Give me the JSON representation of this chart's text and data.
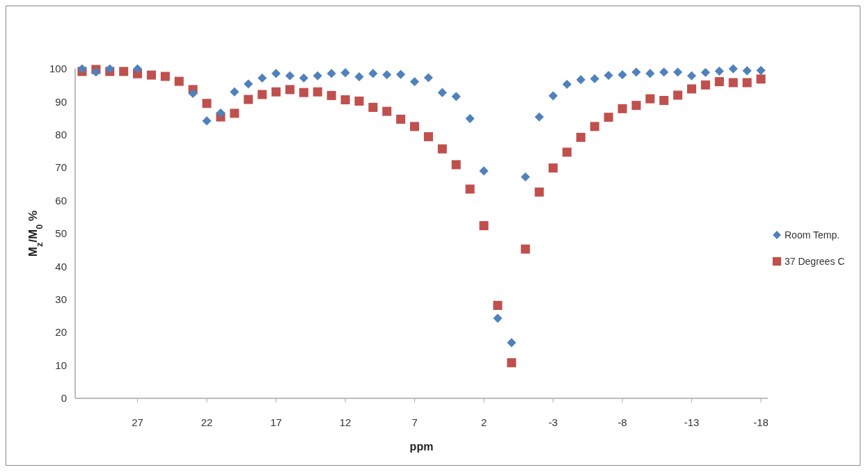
{
  "chart_data": {
    "type": "scatter",
    "xlabel": "ppm",
    "ylabel": "M$_{z}$/M$_{0}$ %",
    "x": [
      31,
      30,
      29,
      28,
      27,
      26,
      25,
      24,
      23,
      22,
      21,
      20,
      19,
      18,
      17,
      16,
      15,
      14,
      13,
      12,
      11,
      10,
      9,
      8,
      7,
      6,
      5,
      4,
      3,
      2,
      1,
      0,
      -1,
      -2,
      -3,
      -4,
      -5,
      -6,
      -7,
      -8,
      -9,
      -10,
      -11,
      -12,
      -13,
      -14,
      -15,
      -16,
      -17,
      -18
    ],
    "series": [
      {
        "name": "Room Temp.",
        "color": "#4f81bd",
        "marker": "diamond",
        "values": [
          100,
          99,
          100,
          null,
          100,
          null,
          null,
          null,
          92.5,
          84.2,
          86.6,
          93,
          95.4,
          97.2,
          98.6,
          97.9,
          97.2,
          97.9,
          98.6,
          98.8,
          97.6,
          98.6,
          98.2,
          98.3,
          96.1,
          97.3,
          92.8,
          91.6,
          84.9,
          69,
          24.3,
          16.9,
          67.2,
          85.4,
          91.8,
          95.3,
          96.7,
          97,
          98,
          98.2,
          99,
          98.6,
          99,
          99,
          97.9,
          98.9,
          99.3,
          100,
          99.4,
          99.5
        ]
      },
      {
        "name": "37 Degrees C",
        "color": "#c0504d",
        "marker": "square",
        "values": [
          99.2,
          99.8,
          99.2,
          99.2,
          98.5,
          98.1,
          97.7,
          96.2,
          93.7,
          89.5,
          85.4,
          86.5,
          90.7,
          92.2,
          93,
          93.7,
          92.8,
          93,
          91.9,
          90.6,
          90.2,
          88.3,
          87.1,
          84.7,
          82.5,
          79.4,
          75.7,
          70.9,
          63.5,
          52.4,
          28.2,
          10.8,
          45.3,
          62.6,
          69.9,
          74.7,
          79.2,
          82.5,
          85.3,
          87.9,
          88.9,
          90.9,
          90.4,
          92,
          93.9,
          95.1,
          96.1,
          95.8,
          95.8,
          96.9
        ]
      }
    ],
    "xlim": [
      31.5,
      -18.5
    ],
    "xticks": [
      27,
      22,
      17,
      12,
      7,
      2,
      -3,
      -8,
      -13,
      -18
    ],
    "ylim": [
      0,
      100
    ],
    "yticks": [
      0,
      10,
      20,
      30,
      40,
      50,
      60,
      70,
      80,
      90,
      100
    ],
    "grid": false,
    "legend": "right"
  }
}
